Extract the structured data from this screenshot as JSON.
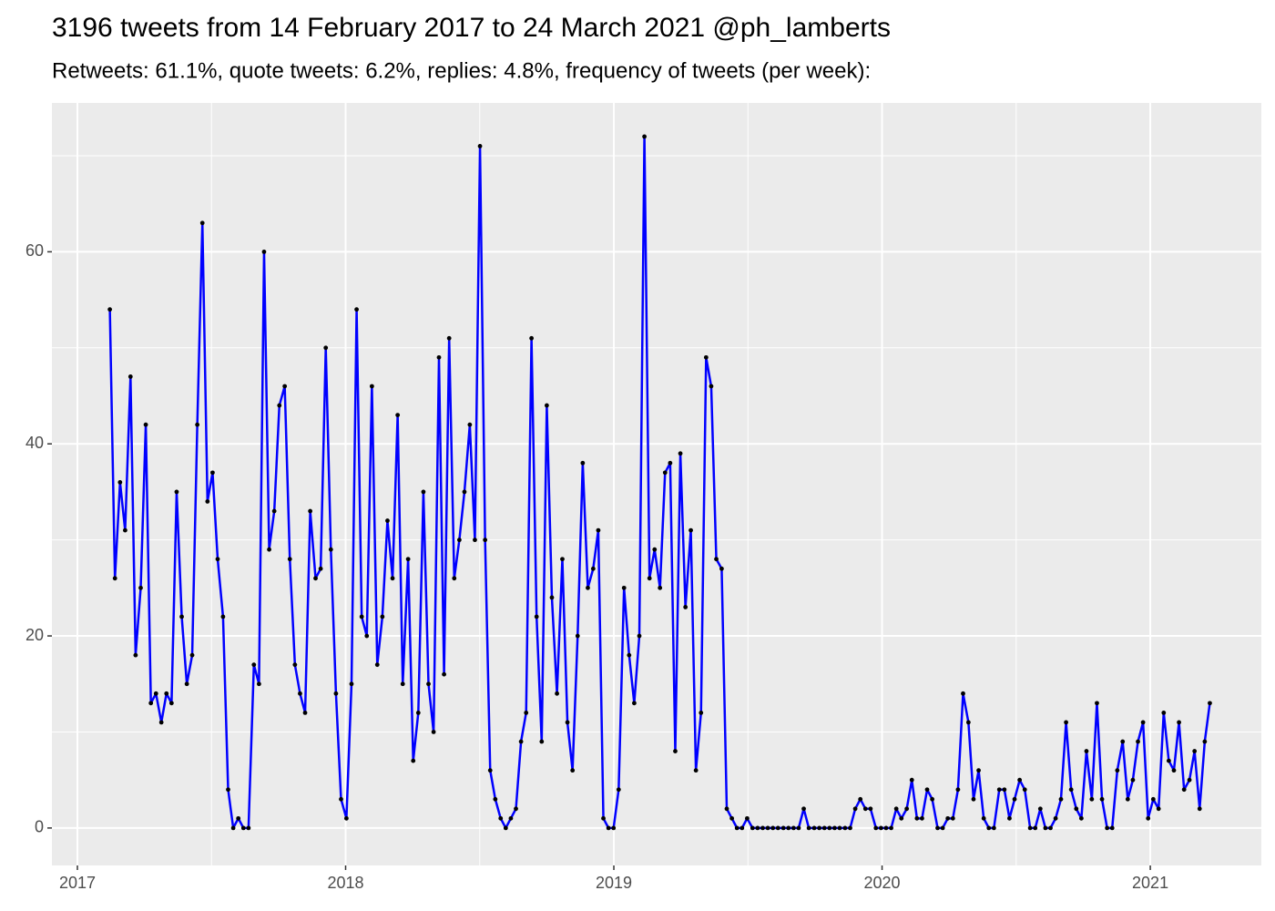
{
  "chart_data": {
    "type": "line",
    "title": "3196 tweets from 14 February 2017 to 24 March 2021 @ph_lamberts",
    "subtitle": "Retweets: 61.1%, quote tweets: 6.2%, replies: 4.8%, frequency of tweets (per week):",
    "x": [
      2017.121,
      2017.14,
      2017.159,
      2017.178,
      2017.198,
      2017.217,
      2017.236,
      2017.255,
      2017.274,
      2017.293,
      2017.313,
      2017.332,
      2017.351,
      2017.37,
      2017.389,
      2017.408,
      2017.428,
      2017.447,
      2017.466,
      2017.485,
      2017.504,
      2017.523,
      2017.543,
      2017.562,
      2017.581,
      2017.6,
      2017.619,
      2017.638,
      2017.658,
      2017.677,
      2017.696,
      2017.715,
      2017.734,
      2017.753,
      2017.773,
      2017.792,
      2017.811,
      2017.83,
      2017.849,
      2017.868,
      2017.888,
      2017.907,
      2017.926,
      2017.945,
      2017.964,
      2017.983,
      2018.003,
      2018.022,
      2018.041,
      2018.06,
      2018.079,
      2018.098,
      2018.118,
      2018.137,
      2018.156,
      2018.175,
      2018.194,
      2018.213,
      2018.233,
      2018.252,
      2018.271,
      2018.29,
      2018.309,
      2018.328,
      2018.348,
      2018.367,
      2018.386,
      2018.405,
      2018.424,
      2018.443,
      2018.463,
      2018.482,
      2018.501,
      2018.52,
      2018.539,
      2018.558,
      2018.578,
      2018.597,
      2018.616,
      2018.635,
      2018.654,
      2018.673,
      2018.693,
      2018.712,
      2018.731,
      2018.75,
      2018.769,
      2018.788,
      2018.808,
      2018.827,
      2018.846,
      2018.865,
      2018.884,
      2018.903,
      2018.923,
      2018.942,
      2018.961,
      2018.98,
      2018.999,
      2019.018,
      2019.038,
      2019.057,
      2019.076,
      2019.095,
      2019.114,
      2019.133,
      2019.152,
      2019.172,
      2019.191,
      2019.21,
      2019.229,
      2019.248,
      2019.267,
      2019.287,
      2019.306,
      2019.325,
      2019.344,
      2019.363,
      2019.382,
      2019.402,
      2019.421,
      2019.44,
      2019.459,
      2019.478,
      2019.497,
      2019.517,
      2019.536,
      2019.555,
      2019.574,
      2019.593,
      2019.612,
      2019.632,
      2019.651,
      2019.67,
      2019.689,
      2019.708,
      2019.727,
      2019.747,
      2019.766,
      2019.785,
      2019.804,
      2019.823,
      2019.842,
      2019.862,
      2019.881,
      2019.9,
      2019.919,
      2019.938,
      2019.957,
      2019.977,
      2019.996,
      2020.015,
      2020.034,
      2020.053,
      2020.072,
      2020.092,
      2020.111,
      2020.13,
      2020.149,
      2020.168,
      2020.187,
      2020.207,
      2020.226,
      2020.245,
      2020.264,
      2020.283,
      2020.302,
      2020.322,
      2020.341,
      2020.36,
      2020.379,
      2020.398,
      2020.417,
      2020.437,
      2020.456,
      2020.475,
      2020.494,
      2020.513,
      2020.532,
      2020.552,
      2020.571,
      2020.59,
      2020.609,
      2020.628,
      2020.647,
      2020.667,
      2020.686,
      2020.705,
      2020.724,
      2020.743,
      2020.762,
      2020.782,
      2020.801,
      2020.82,
      2020.839,
      2020.858,
      2020.877,
      2020.897,
      2020.916,
      2020.935,
      2020.954,
      2020.973,
      2020.992,
      2021.011,
      2021.031,
      2021.05,
      2021.069,
      2021.088,
      2021.107,
      2021.126,
      2021.146,
      2021.165,
      2021.184,
      2021.203,
      2021.222
    ],
    "values": [
      54,
      26,
      36,
      31,
      47,
      18,
      25,
      42,
      13,
      14,
      11,
      14,
      13,
      35,
      22,
      15,
      18,
      42,
      63,
      34,
      37,
      28,
      22,
      4,
      0,
      1,
      0,
      0,
      17,
      15,
      60,
      29,
      33,
      44,
      46,
      28,
      17,
      14,
      12,
      33,
      26,
      27,
      50,
      29,
      14,
      3,
      1,
      15,
      54,
      22,
      20,
      46,
      17,
      22,
      32,
      26,
      43,
      15,
      28,
      7,
      12,
      35,
      15,
      10,
      49,
      16,
      51,
      26,
      30,
      35,
      42,
      30,
      71,
      30,
      6,
      3,
      1,
      0,
      1,
      2,
      9,
      12,
      51,
      22,
      9,
      44,
      24,
      14,
      28,
      11,
      6,
      20,
      38,
      25,
      27,
      31,
      1,
      0,
      0,
      4,
      25,
      18,
      13,
      20,
      72,
      26,
      29,
      25,
      37,
      38,
      8,
      39,
      23,
      31,
      6,
      12,
      49,
      46,
      28,
      27,
      2,
      1,
      0,
      0,
      1,
      0,
      0,
      0,
      0,
      0,
      0,
      0,
      0,
      0,
      0,
      2,
      0,
      0,
      0,
      0,
      0,
      0,
      0,
      0,
      0,
      2,
      3,
      2,
      2,
      0,
      0,
      0,
      0,
      2,
      1,
      2,
      5,
      1,
      1,
      4,
      3,
      0,
      0,
      1,
      1,
      4,
      14,
      11,
      3,
      6,
      1,
      0,
      0,
      4,
      4,
      1,
      3,
      5,
      4,
      0,
      0,
      2,
      0,
      0,
      1,
      3,
      11,
      4,
      2,
      1,
      8,
      3,
      13,
      3,
      0,
      0,
      6,
      9,
      3,
      5,
      9,
      11,
      1,
      3,
      2,
      12,
      7,
      6,
      11,
      4,
      5,
      8,
      2,
      9,
      13
    ],
    "color": "#0000ff",
    "marker_color": "#000000",
    "xlim": [
      2016.905,
      2021.414
    ],
    "xticks": [
      2017,
      2018,
      2019,
      2020,
      2021
    ],
    "ylim": [
      -3.9,
      75.5
    ],
    "yticks": [
      0,
      20,
      40,
      60
    ],
    "grid": true
  }
}
